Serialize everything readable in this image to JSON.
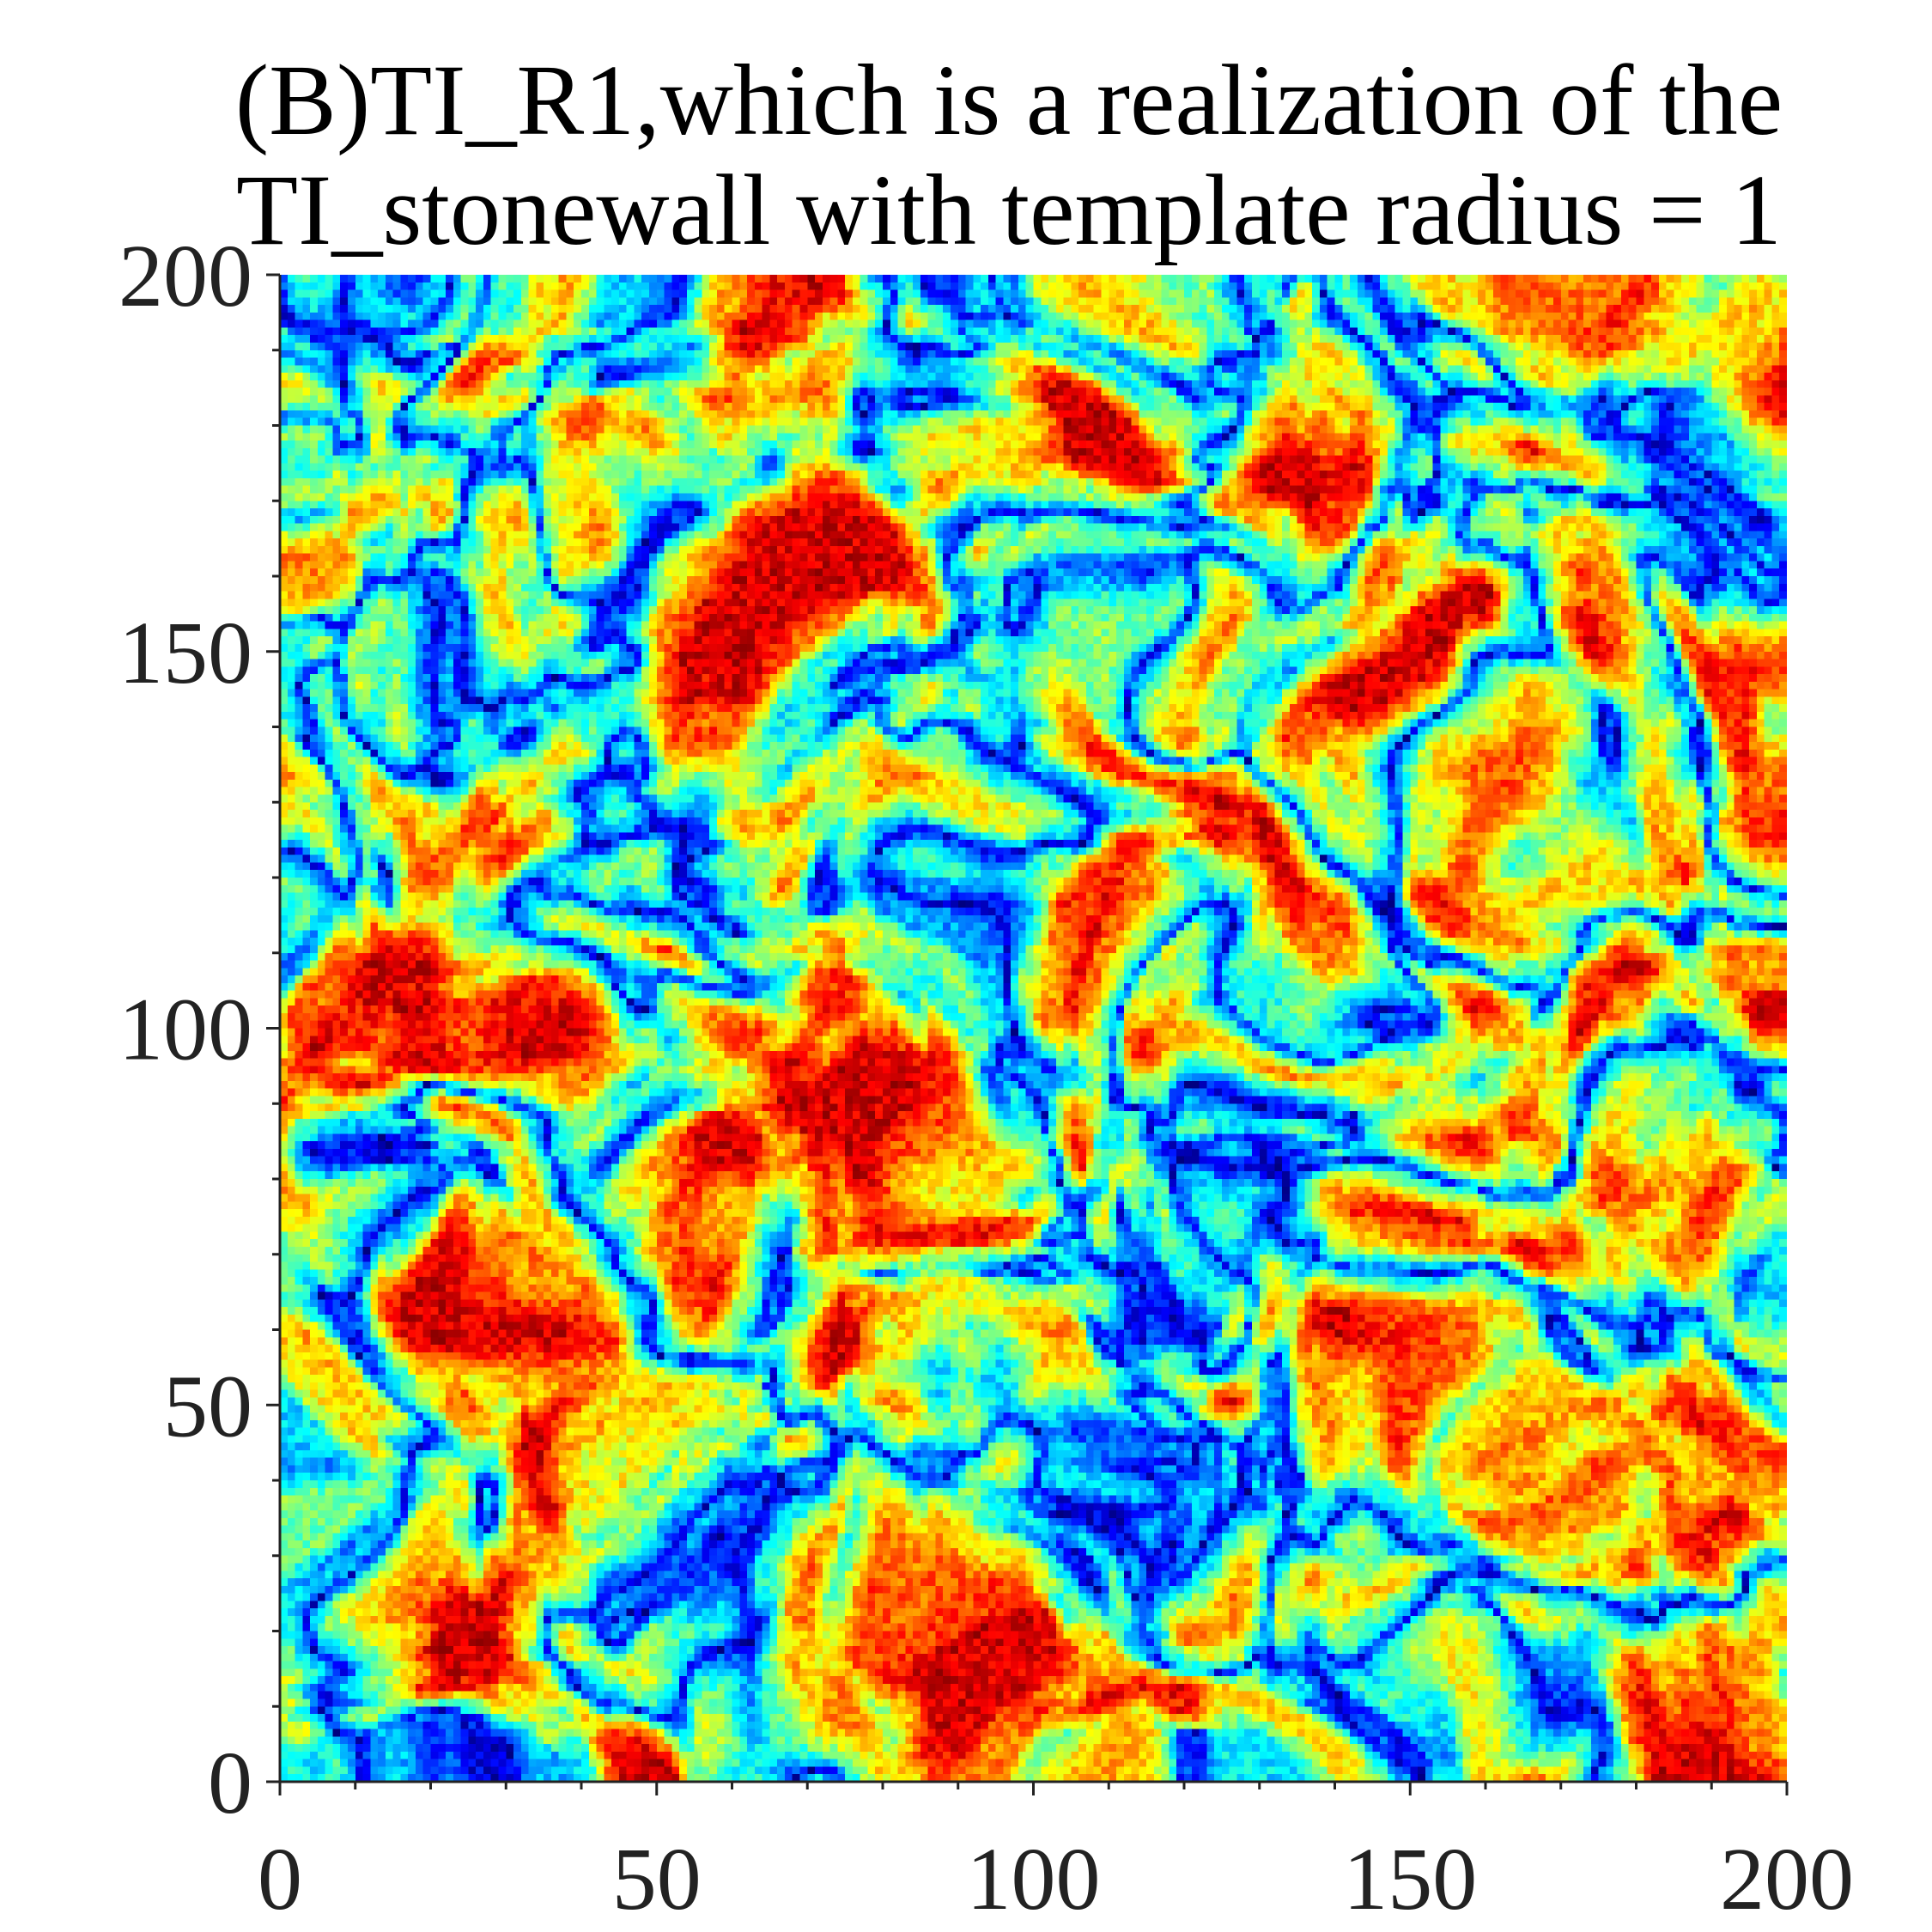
{
  "chart_data": {
    "type": "heatmap",
    "title": "(B)TI_R1,which is a realization of the TI_stonewall with template radius = 1",
    "title_lines": [
      "(B)TI_R1,which is a realization of the",
      "TI_stonewall with template radius = 1"
    ],
    "xlabel": "",
    "ylabel": "",
    "xlim": [
      0,
      200
    ],
    "ylim": [
      0,
      200
    ],
    "grid_size": [
      200,
      200
    ],
    "x_ticks": [
      0,
      50,
      100,
      150,
      200
    ],
    "y_ticks": [
      0,
      50,
      100,
      150,
      200
    ],
    "x_tick_labels": [
      "0",
      "50",
      "100",
      "150",
      "200"
    ],
    "y_tick_labels": [
      "0",
      "50",
      "100",
      "150",
      "200"
    ],
    "minor_tick_step": 10,
    "colormap": "jet",
    "colorbar": false,
    "grid": false,
    "colors": {
      "dark_blue": "#00008f",
      "blue": "#0030ff",
      "cyan": "#40ffff",
      "yellow": "#ffff00",
      "orange": "#ff8000",
      "red": "#d00000"
    }
  },
  "figure": {
    "seed": 17
  }
}
